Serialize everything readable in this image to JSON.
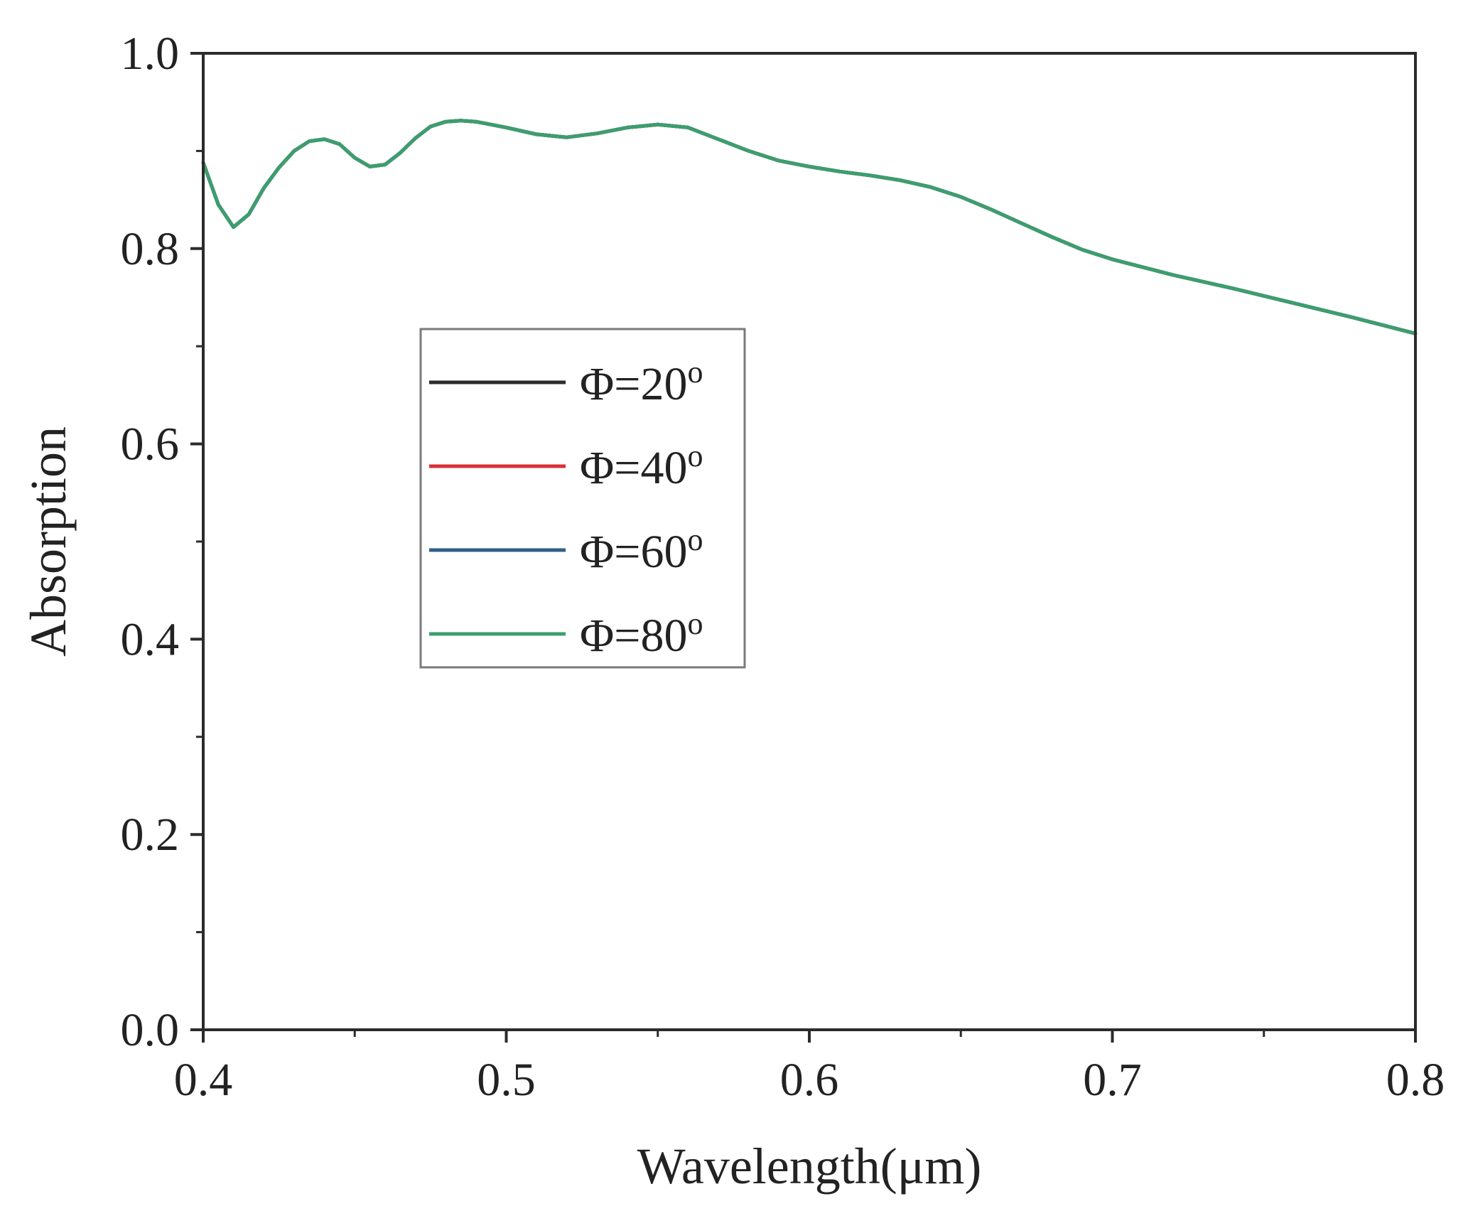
{
  "chart_data": {
    "type": "line",
    "title": "",
    "xlabel": "Wavelength(μm)",
    "ylabel": "Absorption",
    "xlim": [
      0.4,
      0.8
    ],
    "ylim": [
      0.0,
      1.0
    ],
    "x_ticks": [
      "0.4",
      "0.5",
      "0.6",
      "0.7",
      "0.8"
    ],
    "y_ticks": [
      "0.0",
      "0.2",
      "0.4",
      "0.6",
      "0.8",
      "1.0"
    ],
    "grid": false,
    "legend_position": "center-left",
    "x": [
      0.4,
      0.405,
      0.41,
      0.415,
      0.42,
      0.425,
      0.43,
      0.435,
      0.44,
      0.445,
      0.45,
      0.455,
      0.46,
      0.465,
      0.47,
      0.475,
      0.48,
      0.485,
      0.49,
      0.495,
      0.5,
      0.51,
      0.52,
      0.53,
      0.54,
      0.55,
      0.56,
      0.57,
      0.58,
      0.59,
      0.6,
      0.61,
      0.62,
      0.63,
      0.64,
      0.65,
      0.66,
      0.67,
      0.68,
      0.69,
      0.7,
      0.72,
      0.74,
      0.76,
      0.78,
      0.8
    ],
    "series": [
      {
        "name": "Φ=20°",
        "label_base": "Φ=20",
        "degree": "o",
        "color": "#2b2b2b",
        "values": [
          0.888,
          0.845,
          0.822,
          0.835,
          0.862,
          0.883,
          0.9,
          0.91,
          0.912,
          0.907,
          0.893,
          0.884,
          0.886,
          0.898,
          0.913,
          0.925,
          0.93,
          0.931,
          0.93,
          0.927,
          0.924,
          0.917,
          0.914,
          0.918,
          0.924,
          0.927,
          0.924,
          0.912,
          0.9,
          0.89,
          0.884,
          0.879,
          0.875,
          0.87,
          0.863,
          0.853,
          0.84,
          0.826,
          0.812,
          0.799,
          0.789,
          0.773,
          0.759,
          0.744,
          0.729,
          0.713
        ]
      },
      {
        "name": "Φ=40°",
        "label_base": "Φ=40",
        "degree": "o",
        "color": "#d9303a",
        "values": [
          0.888,
          0.845,
          0.822,
          0.835,
          0.862,
          0.883,
          0.9,
          0.91,
          0.912,
          0.907,
          0.893,
          0.884,
          0.886,
          0.898,
          0.913,
          0.925,
          0.93,
          0.931,
          0.93,
          0.927,
          0.924,
          0.917,
          0.914,
          0.918,
          0.924,
          0.927,
          0.924,
          0.912,
          0.9,
          0.89,
          0.884,
          0.879,
          0.875,
          0.87,
          0.863,
          0.853,
          0.84,
          0.826,
          0.812,
          0.799,
          0.789,
          0.773,
          0.759,
          0.744,
          0.729,
          0.713
        ]
      },
      {
        "name": "Φ=60°",
        "label_base": "Φ=60",
        "degree": "o",
        "color": "#2f5f86",
        "values": [
          0.888,
          0.845,
          0.822,
          0.835,
          0.862,
          0.883,
          0.9,
          0.91,
          0.912,
          0.907,
          0.893,
          0.884,
          0.886,
          0.898,
          0.913,
          0.925,
          0.93,
          0.931,
          0.93,
          0.927,
          0.924,
          0.917,
          0.914,
          0.918,
          0.924,
          0.927,
          0.924,
          0.912,
          0.9,
          0.89,
          0.884,
          0.879,
          0.875,
          0.87,
          0.863,
          0.853,
          0.84,
          0.826,
          0.812,
          0.799,
          0.789,
          0.773,
          0.759,
          0.744,
          0.729,
          0.713
        ]
      },
      {
        "name": "Φ=80°",
        "label_base": "Φ=80",
        "degree": "o",
        "color": "#3c9e6e",
        "values": [
          0.888,
          0.845,
          0.822,
          0.835,
          0.862,
          0.883,
          0.9,
          0.91,
          0.912,
          0.907,
          0.893,
          0.884,
          0.886,
          0.898,
          0.913,
          0.925,
          0.93,
          0.931,
          0.93,
          0.927,
          0.924,
          0.917,
          0.914,
          0.918,
          0.924,
          0.927,
          0.924,
          0.912,
          0.9,
          0.89,
          0.884,
          0.879,
          0.875,
          0.87,
          0.863,
          0.853,
          0.84,
          0.826,
          0.812,
          0.799,
          0.789,
          0.773,
          0.759,
          0.744,
          0.729,
          0.713
        ]
      }
    ]
  }
}
